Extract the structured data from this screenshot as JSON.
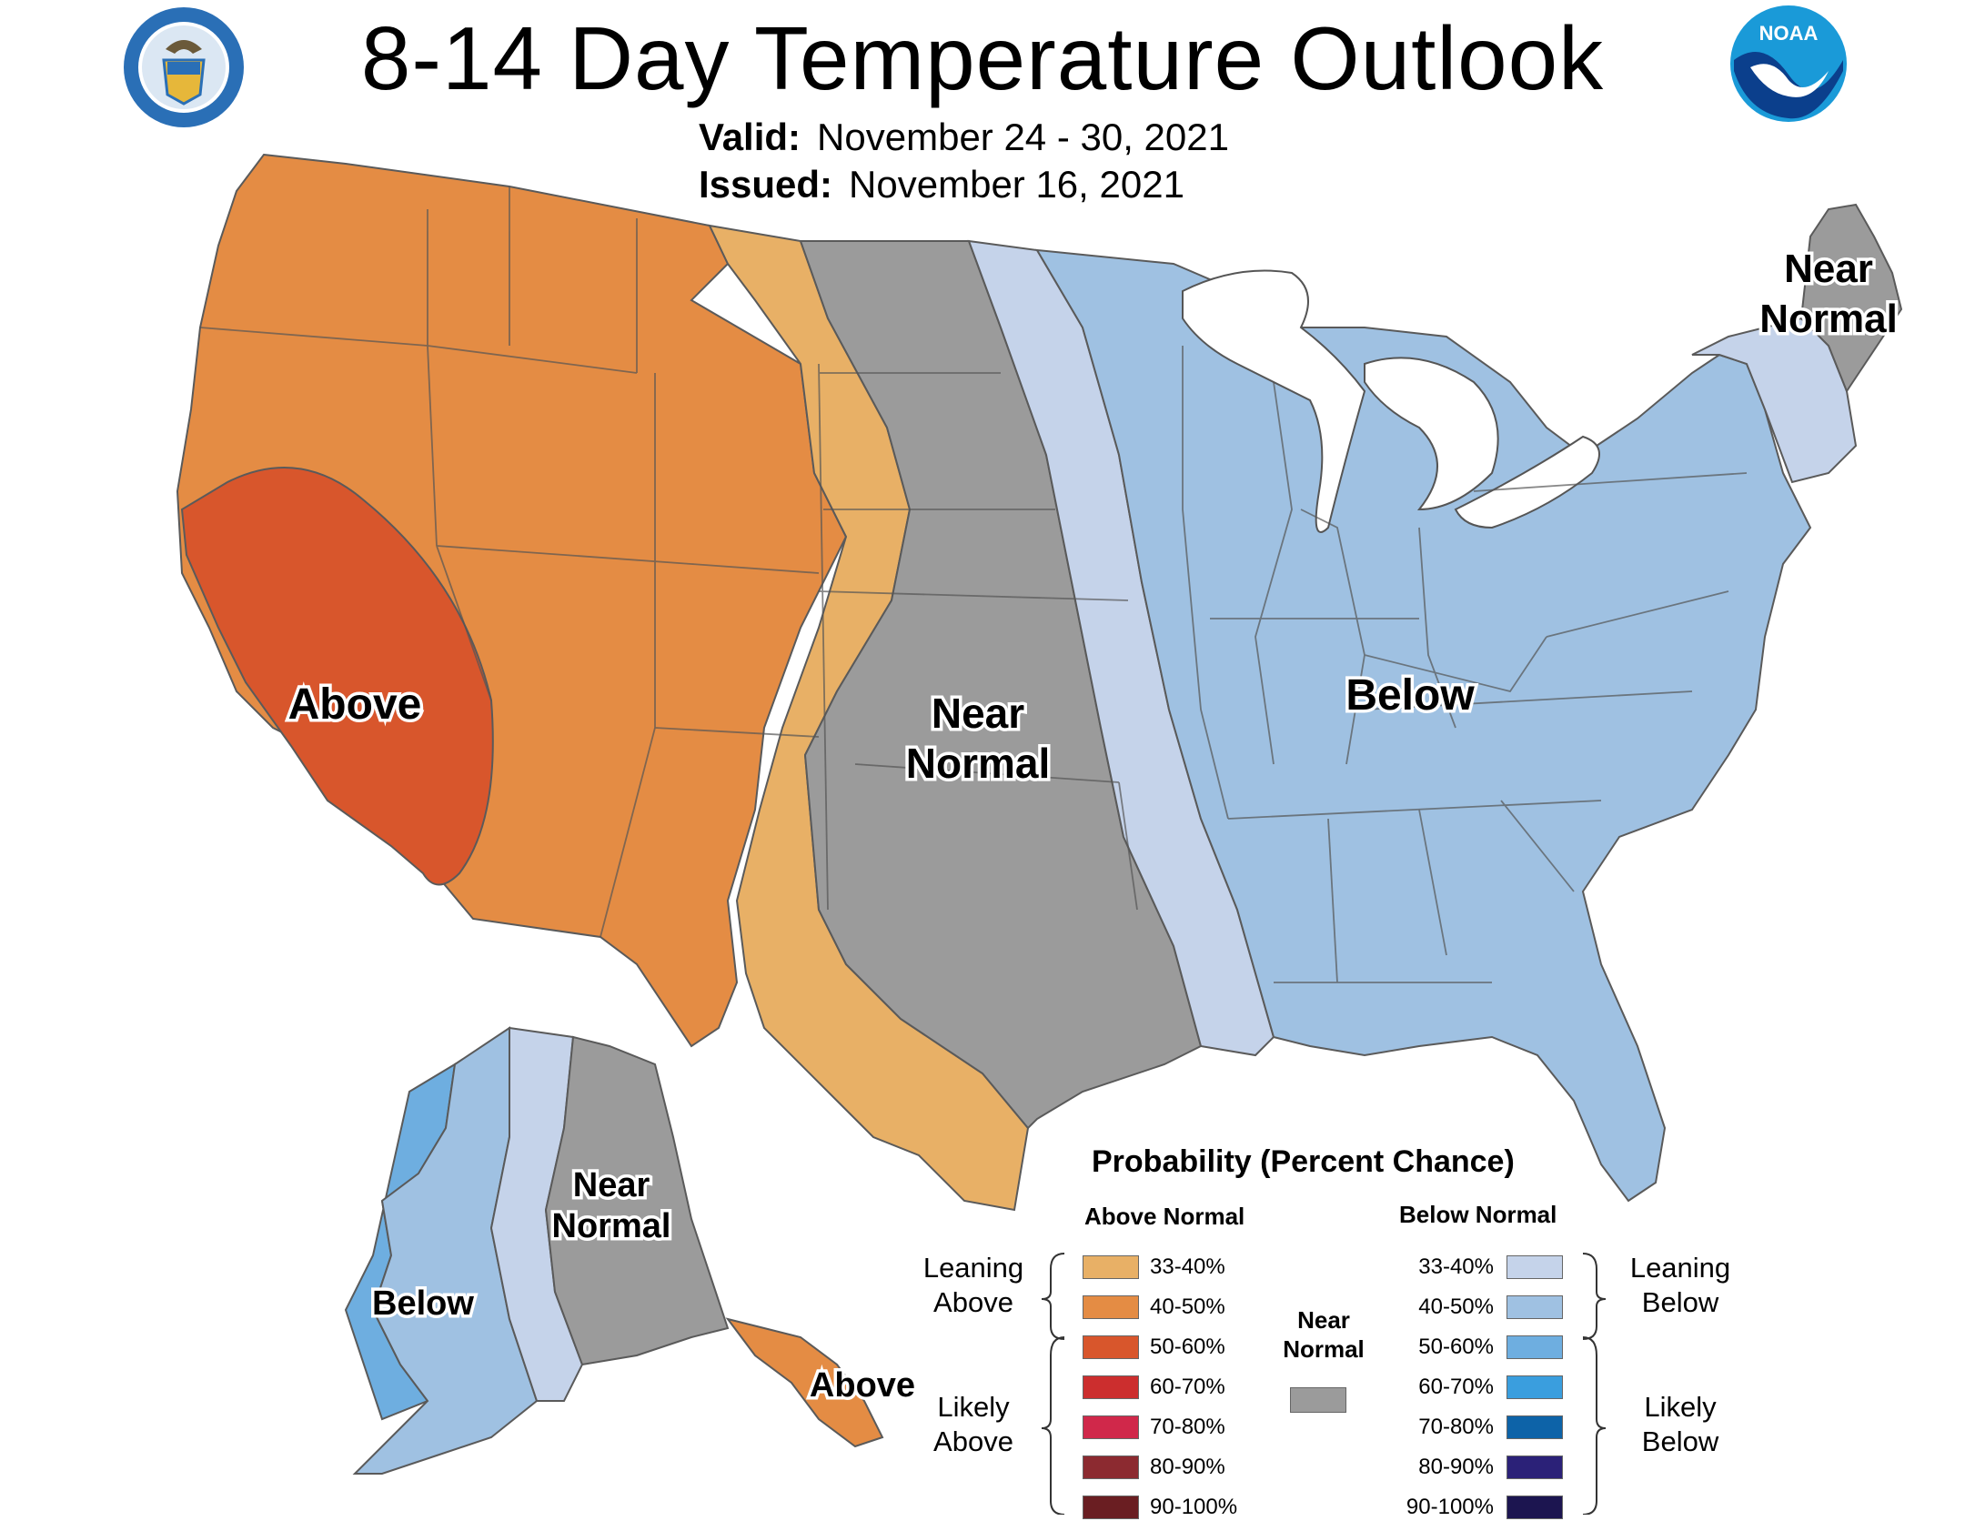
{
  "header": {
    "title": "8-14 Day Temperature Outlook",
    "valid_label": "Valid:",
    "valid_value": "November 24 - 30, 2021",
    "issued_label": "Issued:",
    "issued_value": "November 16, 2021"
  },
  "logos": {
    "left": "department-of-commerce-seal",
    "right": "noaa-logo",
    "right_text": "NOAA"
  },
  "map": {
    "colors": {
      "above_40_50": "#e48c44",
      "above_33_40": "#e8b066",
      "above_50_60": "#d8562c",
      "near_normal": "#9b9b9b",
      "below_33_40": "#c5d3ea",
      "below_40_50": "#9fc1e2",
      "below_50_60": "#6eaee0"
    },
    "labels": {
      "above_west": "Above",
      "near_plains_1": "Near",
      "near_plains_2": "Normal",
      "below_east": "Below",
      "near_ne_1": "Near",
      "near_ne_2": "Normal",
      "alaska_near_1": "Near",
      "alaska_near_2": "Normal",
      "alaska_below": "Below",
      "alaska_above": "Above"
    }
  },
  "legend": {
    "title": "Probability (Percent Chance)",
    "above_header": "Above Normal",
    "below_header": "Below Normal",
    "near_label_1": "Near",
    "near_label_2": "Normal",
    "leaning_above_1": "Leaning",
    "leaning_above_2": "Above",
    "likely_above_1": "Likely",
    "likely_above_2": "Above",
    "leaning_below_1": "Leaning",
    "leaning_below_2": "Below",
    "likely_below_1": "Likely",
    "likely_below_2": "Below",
    "above": [
      {
        "label": "33-40%",
        "color": "#e8b066"
      },
      {
        "label": "40-50%",
        "color": "#e48c44"
      },
      {
        "label": "50-60%",
        "color": "#d8562c"
      },
      {
        "label": "60-70%",
        "color": "#cc2e2e"
      },
      {
        "label": "70-80%",
        "color": "#d0284a"
      },
      {
        "label": "80-90%",
        "color": "#8c2a30"
      },
      {
        "label": "90-100%",
        "color": "#6a1e22"
      }
    ],
    "below": [
      {
        "label": "33-40%",
        "color": "#c5d3ea"
      },
      {
        "label": "40-50%",
        "color": "#9fc1e2"
      },
      {
        "label": "50-60%",
        "color": "#6eaee0"
      },
      {
        "label": "60-70%",
        "color": "#3a9ede"
      },
      {
        "label": "70-80%",
        "color": "#0d63a8"
      },
      {
        "label": "80-90%",
        "color": "#2b2178"
      },
      {
        "label": "90-100%",
        "color": "#1c1550"
      }
    ]
  }
}
